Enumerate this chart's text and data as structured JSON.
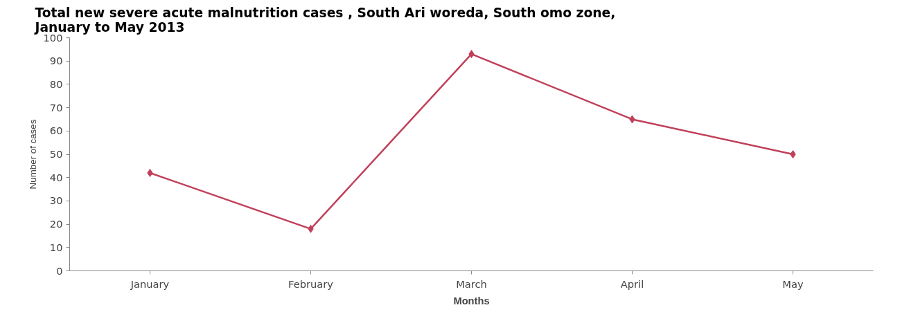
{
  "chart_data": {
    "type": "line",
    "title": "Total new severe acute malnutrition cases , South Ari woreda, South omo zone, January to May 2013",
    "xlabel": "Months",
    "ylabel": "Number of cases",
    "categories": [
      "January",
      "February",
      "March",
      "April",
      "May"
    ],
    "series": [
      {
        "color": "#c0405a",
        "values": [
          42,
          18,
          93,
          65,
          50
        ]
      }
    ],
    "ylim": [
      0,
      100
    ],
    "yticks": [
      0,
      10,
      20,
      30,
      40,
      50,
      60,
      70,
      80,
      90,
      100
    ],
    "grid": false,
    "marker": "diamond",
    "line_style": "solid"
  }
}
